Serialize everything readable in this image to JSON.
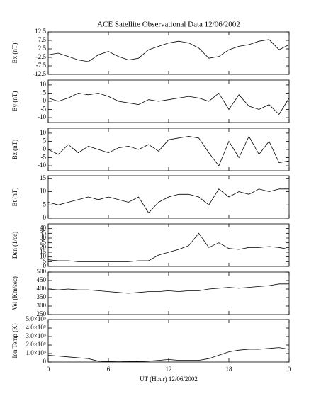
{
  "chart_data": [
    {
      "type": "line",
      "title": "ACE Satellite Observational Data   12/06/2002",
      "ylabel": "Bx (nT)",
      "x": [
        0,
        1,
        2,
        3,
        4,
        5,
        6,
        7,
        8,
        9,
        10,
        11,
        12,
        13,
        14,
        15,
        16,
        17,
        18,
        19,
        20,
        21,
        22,
        23,
        24
      ],
      "series": [
        {
          "name": "Bx",
          "color": "#000000",
          "values": [
            -1,
            0,
            -2,
            -4,
            -5,
            -1,
            1,
            -2,
            -4,
            -3,
            2,
            4,
            6,
            7,
            6,
            3,
            -3,
            -2,
            2,
            4,
            5,
            7,
            8,
            2,
            5
          ]
        }
      ],
      "xlim": [
        0,
        24
      ],
      "ylim": [
        -12.5,
        12.5
      ],
      "yticks": [
        -12.5,
        -7.5,
        -2.5,
        2.5,
        7.5,
        12.5
      ]
    },
    {
      "type": "line",
      "ylabel": "By (nT)",
      "x": [
        0,
        1,
        2,
        3,
        4,
        5,
        6,
        7,
        8,
        9,
        10,
        11,
        12,
        13,
        14,
        15,
        16,
        17,
        18,
        19,
        20,
        21,
        22,
        23,
        24
      ],
      "series": [
        {
          "name": "By",
          "color": "#000000",
          "values": [
            2,
            0,
            2,
            5,
            4,
            5,
            3,
            0,
            -1,
            -2,
            1,
            0,
            1,
            2,
            3,
            2,
            0,
            5,
            -5,
            4,
            -3,
            -5,
            -2,
            -8,
            2
          ]
        }
      ],
      "xlim": [
        0,
        24
      ],
      "ylim": [
        -13,
        13
      ],
      "yticks": [
        -10,
        -5,
        0,
        5,
        10
      ]
    },
    {
      "type": "line",
      "ylabel": "Bz (nT)",
      "x": [
        0,
        1,
        2,
        3,
        4,
        5,
        6,
        7,
        8,
        9,
        10,
        11,
        12,
        13,
        14,
        15,
        16,
        17,
        18,
        19,
        20,
        21,
        22,
        23,
        24
      ],
      "series": [
        {
          "name": "Bz",
          "color": "#000000",
          "values": [
            0,
            -3,
            3,
            -2,
            2,
            0,
            -2,
            1,
            2,
            0,
            3,
            -1,
            6,
            7,
            8,
            7,
            -2,
            -10,
            5,
            -5,
            8,
            -3,
            5,
            -8,
            -7
          ]
        }
      ],
      "xlim": [
        0,
        24
      ],
      "ylim": [
        -13,
        13
      ],
      "yticks": [
        -10,
        -5,
        0,
        5,
        10
      ]
    },
    {
      "type": "line",
      "ylabel": "Bt (nT)",
      "x": [
        0,
        1,
        2,
        3,
        4,
        5,
        6,
        7,
        8,
        9,
        10,
        11,
        12,
        13,
        14,
        15,
        16,
        17,
        18,
        19,
        20,
        21,
        22,
        23,
        24
      ],
      "series": [
        {
          "name": "Bt",
          "color": "#000000",
          "values": [
            6,
            5,
            6,
            7,
            8,
            7,
            8,
            7,
            6,
            8,
            2,
            6,
            8,
            9,
            9,
            8,
            5,
            11,
            8,
            10,
            9,
            11,
            10,
            11,
            11
          ]
        }
      ],
      "xlim": [
        0,
        24
      ],
      "ylim": [
        0,
        16
      ],
      "yticks": [
        0,
        5,
        10,
        15
      ]
    },
    {
      "type": "line",
      "ylabel": "Den (1/cc)",
      "x": [
        0,
        1,
        2,
        3,
        4,
        5,
        6,
        7,
        8,
        9,
        10,
        11,
        12,
        13,
        14,
        15,
        16,
        17,
        18,
        19,
        20,
        21,
        22,
        23,
        24
      ],
      "series": [
        {
          "name": "Den",
          "color": "#000000",
          "values": [
            7,
            6,
            6,
            5,
            5,
            5,
            5,
            5,
            5,
            6,
            6,
            12,
            15,
            18,
            22,
            35,
            20,
            25,
            19,
            18,
            20,
            20,
            21,
            20,
            18
          ]
        }
      ],
      "xlim": [
        0,
        24
      ],
      "ylim": [
        0,
        45
      ],
      "yticks": [
        0,
        5,
        10,
        15,
        20,
        25,
        30,
        35,
        40
      ]
    },
    {
      "type": "line",
      "ylabel": "Vel (Km/sec)",
      "x": [
        0,
        1,
        2,
        3,
        4,
        5,
        6,
        7,
        8,
        9,
        10,
        11,
        12,
        13,
        14,
        15,
        16,
        17,
        18,
        19,
        20,
        21,
        22,
        23,
        24
      ],
      "series": [
        {
          "name": "Vel",
          "color": "#000000",
          "values": [
            400,
            395,
            400,
            395,
            395,
            390,
            385,
            380,
            375,
            380,
            385,
            385,
            390,
            385,
            390,
            390,
            400,
            405,
            410,
            405,
            410,
            415,
            420,
            430,
            430
          ]
        }
      ],
      "xlim": [
        0,
        24
      ],
      "ylim": [
        250,
        500
      ],
      "yticks": [
        250,
        300,
        350,
        400,
        450,
        500
      ]
    },
    {
      "type": "line",
      "ylabel": "Ion Temp (K)",
      "xlabel": "UT (Hour)   12/06/2002",
      "x": [
        0,
        1,
        2,
        3,
        4,
        5,
        6,
        7,
        8,
        9,
        10,
        11,
        12,
        13,
        14,
        15,
        16,
        17,
        18,
        19,
        20,
        21,
        22,
        23,
        24
      ],
      "series": [
        {
          "name": "Ion Temp",
          "color": "#000000",
          "values": [
            80000,
            70000,
            60000,
            50000,
            40000,
            10000,
            5000,
            10000,
            5000,
            5000,
            10000,
            20000,
            30000,
            20000,
            20000,
            20000,
            40000,
            80000,
            120000,
            140000,
            150000,
            150000,
            160000,
            170000,
            150000
          ]
        }
      ],
      "xlim": [
        0,
        24
      ],
      "ylim": [
        0,
        500000
      ],
      "yticks": [
        0,
        {
          "value": 100000,
          "label": "1.0×10⁵"
        },
        {
          "value": 200000,
          "label": "2.0×10⁵"
        },
        {
          "value": 300000,
          "label": "3.0×10⁵"
        },
        {
          "value": 400000,
          "label": "4.0×10⁵"
        },
        {
          "value": 500000,
          "label": "5.0×10⁵"
        }
      ],
      "xticks": [
        0,
        6,
        12,
        18,
        {
          "value": 24,
          "label": "0"
        }
      ]
    }
  ]
}
